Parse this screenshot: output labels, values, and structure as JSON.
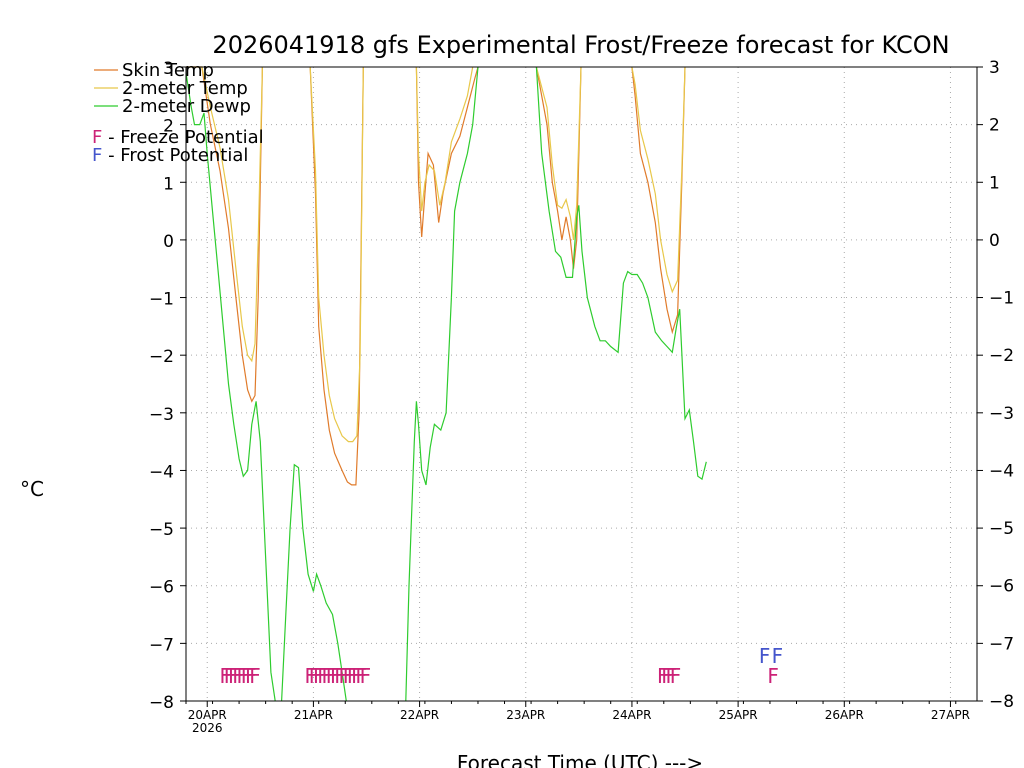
{
  "chart_data": {
    "type": "line",
    "title": "2026041918 gfs Experimental Frost/Freeze forecast for KCON",
    "xlabel": "Forecast Time (UTC) --->",
    "ylabel": "°C",
    "ylim": [
      -8,
      3
    ],
    "yticks": [
      -8,
      -7,
      -6,
      -5,
      -4,
      -3,
      -2,
      -1,
      0,
      1,
      2,
      3
    ],
    "xlim": [
      -0.2,
      7.25
    ],
    "xticks": [
      {
        "x": 0,
        "label": "20APR",
        "sublabel": "2026"
      },
      {
        "x": 1,
        "label": "21APR"
      },
      {
        "x": 2,
        "label": "22APR"
      },
      {
        "x": 3,
        "label": "23APR"
      },
      {
        "x": 4,
        "label": "24APR"
      },
      {
        "x": 5,
        "label": "25APR"
      },
      {
        "x": 6,
        "label": "26APR"
      },
      {
        "x": 7,
        "label": "27APR"
      }
    ],
    "grid": true,
    "legend_position": "top-left",
    "series": [
      {
        "name": "Skin Temp",
        "color": "#e07b2b",
        "segments": [
          [
            [
              -0.2,
              3.0
            ],
            [
              -0.05,
              3.0
            ],
            [
              0.03,
              2.0
            ],
            [
              0.12,
              1.2
            ],
            [
              0.2,
              0.2
            ],
            [
              0.27,
              -1.0
            ],
            [
              0.33,
              -2.0
            ],
            [
              0.38,
              -2.6
            ],
            [
              0.42,
              -2.8
            ],
            [
              0.45,
              -2.7
            ],
            [
              0.48,
              -1.0
            ],
            [
              0.52,
              3.0
            ]
          ],
          [
            [
              0.97,
              3.0
            ],
            [
              1.02,
              0.8
            ],
            [
              1.05,
              -1.5
            ],
            [
              1.1,
              -2.6
            ],
            [
              1.15,
              -3.3
            ],
            [
              1.2,
              -3.7
            ],
            [
              1.27,
              -4.0
            ],
            [
              1.32,
              -4.2
            ],
            [
              1.36,
              -4.25
            ],
            [
              1.4,
              -4.25
            ],
            [
              1.43,
              -3.0
            ],
            [
              1.47,
              3.0
            ]
          ],
          [
            [
              1.97,
              3.0
            ],
            [
              1.99,
              1.0
            ],
            [
              2.02,
              0.05
            ],
            [
              2.05,
              0.8
            ],
            [
              2.08,
              1.5
            ],
            [
              2.13,
              1.3
            ],
            [
              2.18,
              0.3
            ],
            [
              2.22,
              0.8
            ],
            [
              2.3,
              1.5
            ],
            [
              2.38,
              1.8
            ],
            [
              2.45,
              2.3
            ],
            [
              2.52,
              2.8
            ],
            [
              2.55,
              3.0
            ]
          ],
          [
            [
              3.1,
              3.0
            ],
            [
              3.2,
              2.0
            ],
            [
              3.25,
              1.0
            ],
            [
              3.3,
              0.5
            ],
            [
              3.34,
              0.0
            ],
            [
              3.38,
              0.4
            ],
            [
              3.42,
              0.0
            ],
            [
              3.45,
              -0.5
            ],
            [
              3.48,
              0.0
            ],
            [
              3.52,
              3.0
            ]
          ],
          [
            [
              4.0,
              3.0
            ],
            [
              4.03,
              2.5
            ],
            [
              4.08,
              1.5
            ],
            [
              4.15,
              1.0
            ],
            [
              4.22,
              0.3
            ],
            [
              4.27,
              -0.5
            ],
            [
              4.33,
              -1.2
            ],
            [
              4.38,
              -1.6
            ],
            [
              4.43,
              -1.3
            ],
            [
              4.47,
              1.0
            ],
            [
              4.5,
              3.0
            ]
          ]
        ]
      },
      {
        "name": "2-meter Temp",
        "color": "#e8c84a",
        "segments": [
          [
            [
              -0.2,
              3.0
            ],
            [
              -0.05,
              3.0
            ],
            [
              0.03,
              2.3
            ],
            [
              0.12,
              1.6
            ],
            [
              0.2,
              0.7
            ],
            [
              0.27,
              -0.5
            ],
            [
              0.33,
              -1.5
            ],
            [
              0.38,
              -2.0
            ],
            [
              0.42,
              -2.1
            ],
            [
              0.45,
              -1.8
            ],
            [
              0.48,
              0.0
            ],
            [
              0.52,
              3.0
            ]
          ],
          [
            [
              0.97,
              3.0
            ],
            [
              1.02,
              1.2
            ],
            [
              1.05,
              -1.0
            ],
            [
              1.1,
              -2.0
            ],
            [
              1.15,
              -2.7
            ],
            [
              1.2,
              -3.1
            ],
            [
              1.27,
              -3.4
            ],
            [
              1.33,
              -3.5
            ],
            [
              1.37,
              -3.5
            ],
            [
              1.41,
              -3.4
            ],
            [
              1.44,
              -2.0
            ],
            [
              1.47,
              3.0
            ]
          ],
          [
            [
              1.97,
              3.0
            ],
            [
              1.99,
              1.5
            ],
            [
              2.02,
              0.5
            ],
            [
              2.05,
              1.0
            ],
            [
              2.09,
              1.3
            ],
            [
              2.14,
              1.2
            ],
            [
              2.19,
              0.6
            ],
            [
              2.24,
              1.0
            ],
            [
              2.3,
              1.7
            ],
            [
              2.38,
              2.1
            ],
            [
              2.45,
              2.5
            ],
            [
              2.5,
              3.0
            ]
          ],
          [
            [
              3.1,
              3.0
            ],
            [
              3.2,
              2.3
            ],
            [
              3.25,
              1.3
            ],
            [
              3.3,
              0.6
            ],
            [
              3.34,
              0.55
            ],
            [
              3.38,
              0.7
            ],
            [
              3.42,
              0.4
            ],
            [
              3.45,
              0.0
            ],
            [
              3.48,
              0.6
            ],
            [
              3.52,
              3.0
            ]
          ],
          [
            [
              4.0,
              3.0
            ],
            [
              4.03,
              2.7
            ],
            [
              4.08,
              1.9
            ],
            [
              4.15,
              1.4
            ],
            [
              4.22,
              0.8
            ],
            [
              4.27,
              0.0
            ],
            [
              4.33,
              -0.6
            ],
            [
              4.38,
              -0.9
            ],
            [
              4.43,
              -0.7
            ],
            [
              4.47,
              1.2
            ],
            [
              4.5,
              3.0
            ]
          ]
        ]
      },
      {
        "name": "2-meter Dewp",
        "color": "#2ecc2e",
        "segments": [
          [
            [
              -0.2,
              2.9
            ],
            [
              -0.15,
              2.3
            ],
            [
              -0.12,
              2.0
            ],
            [
              -0.07,
              2.0
            ],
            [
              -0.03,
              2.2
            ],
            [
              0.0,
              1.5
            ],
            [
              0.05,
              0.5
            ],
            [
              0.1,
              -0.5
            ],
            [
              0.15,
              -1.5
            ],
            [
              0.2,
              -2.5
            ],
            [
              0.25,
              -3.2
            ],
            [
              0.3,
              -3.8
            ],
            [
              0.34,
              -4.1
            ],
            [
              0.38,
              -4.0
            ],
            [
              0.42,
              -3.2
            ],
            [
              0.46,
              -2.8
            ],
            [
              0.5,
              -3.5
            ],
            [
              0.55,
              -5.5
            ],
            [
              0.6,
              -7.5
            ],
            [
              0.64,
              -8.0
            ]
          ],
          [
            [
              0.7,
              -8.0
            ],
            [
              0.74,
              -6.5
            ],
            [
              0.78,
              -5.0
            ],
            [
              0.82,
              -3.9
            ],
            [
              0.86,
              -3.95
            ],
            [
              0.9,
              -5.0
            ],
            [
              0.95,
              -5.8
            ],
            [
              1.0,
              -6.1
            ],
            [
              1.03,
              -5.8
            ],
            [
              1.07,
              -6.0
            ],
            [
              1.12,
              -6.3
            ],
            [
              1.18,
              -6.5
            ],
            [
              1.23,
              -7.0
            ],
            [
              1.27,
              -7.5
            ],
            [
              1.31,
              -8.0
            ]
          ],
          [
            [
              1.87,
              -8.0
            ],
            [
              1.9,
              -6.0
            ],
            [
              1.95,
              -3.5
            ],
            [
              1.97,
              -2.8
            ],
            [
              1.99,
              -3.2
            ],
            [
              2.02,
              -4.0
            ],
            [
              2.06,
              -4.25
            ],
            [
              2.1,
              -3.6
            ],
            [
              2.14,
              -3.2
            ],
            [
              2.2,
              -3.3
            ],
            [
              2.25,
              -3.0
            ],
            [
              2.3,
              -1.0
            ],
            [
              2.33,
              0.5
            ],
            [
              2.38,
              1.0
            ],
            [
              2.45,
              1.5
            ],
            [
              2.5,
              2.0
            ],
            [
              2.55,
              3.0
            ]
          ],
          [
            [
              3.1,
              3.0
            ],
            [
              3.15,
              1.5
            ],
            [
              3.22,
              0.5
            ],
            [
              3.28,
              -0.2
            ],
            [
              3.33,
              -0.3
            ],
            [
              3.38,
              -0.65
            ],
            [
              3.44,
              -0.65
            ],
            [
              3.48,
              0.4
            ],
            [
              3.5,
              0.6
            ],
            [
              3.53,
              -0.2
            ],
            [
              3.58,
              -1.0
            ],
            [
              3.65,
              -1.5
            ],
            [
              3.7,
              -1.75
            ],
            [
              3.75,
              -1.75
            ],
            [
              3.8,
              -1.85
            ],
            [
              3.87,
              -1.95
            ],
            [
              3.92,
              -0.75
            ],
            [
              3.96,
              -0.55
            ],
            [
              4.0,
              -0.6
            ],
            [
              4.05,
              -0.6
            ],
            [
              4.1,
              -0.75
            ],
            [
              4.15,
              -1.0
            ],
            [
              4.22,
              -1.6
            ],
            [
              4.28,
              -1.75
            ],
            [
              4.33,
              -1.85
            ],
            [
              4.38,
              -1.95
            ],
            [
              4.42,
              -1.5
            ],
            [
              4.45,
              -1.2
            ],
            [
              4.5,
              -3.1
            ],
            [
              4.54,
              -2.95
            ],
            [
              4.58,
              -3.5
            ],
            [
              4.62,
              -4.1
            ],
            [
              4.66,
              -4.15
            ],
            [
              4.7,
              -3.85
            ]
          ]
        ]
      }
    ],
    "markers": [
      {
        "label": "F",
        "type": "Freeze Potential",
        "color": "#cc2277",
        "x": [
          0.17,
          0.21,
          0.25,
          0.29,
          0.33,
          0.37,
          0.41,
          0.45
        ],
        "y": -7.55
      },
      {
        "label": "F",
        "type": "Freeze Potential",
        "color": "#cc2277",
        "x": [
          0.97,
          1.01,
          1.05,
          1.09,
          1.13,
          1.17,
          1.21,
          1.25,
          1.29,
          1.33,
          1.37,
          1.41,
          1.45,
          1.49
        ],
        "y": -7.55
      },
      {
        "label": "F",
        "type": "Freeze Potential",
        "color": "#cc2277",
        "x": [
          4.29,
          4.33,
          4.37,
          4.41
        ],
        "y": -7.55
      },
      {
        "label": "F",
        "type": "Freeze Potential",
        "color": "#cc2277",
        "x": [
          5.33
        ],
        "y": -7.55
      },
      {
        "label": "F",
        "type": "Frost Potential",
        "color": "#4455cc",
        "x": [
          5.25,
          5.37
        ],
        "y": -7.2
      }
    ],
    "legend": {
      "lines": [
        {
          "name": "Skin Temp",
          "color": "#e07b2b"
        },
        {
          "name": "2-meter Temp",
          "color": "#e8c84a"
        },
        {
          "name": "2-meter Dewp",
          "color": "#2ecc2e"
        }
      ],
      "markers": [
        {
          "glyph": "F",
          "text": " - Freeze Potential",
          "color": "#cc2277"
        },
        {
          "glyph": "F",
          "text": " - Frost Potential",
          "color": "#4455cc"
        }
      ]
    }
  }
}
